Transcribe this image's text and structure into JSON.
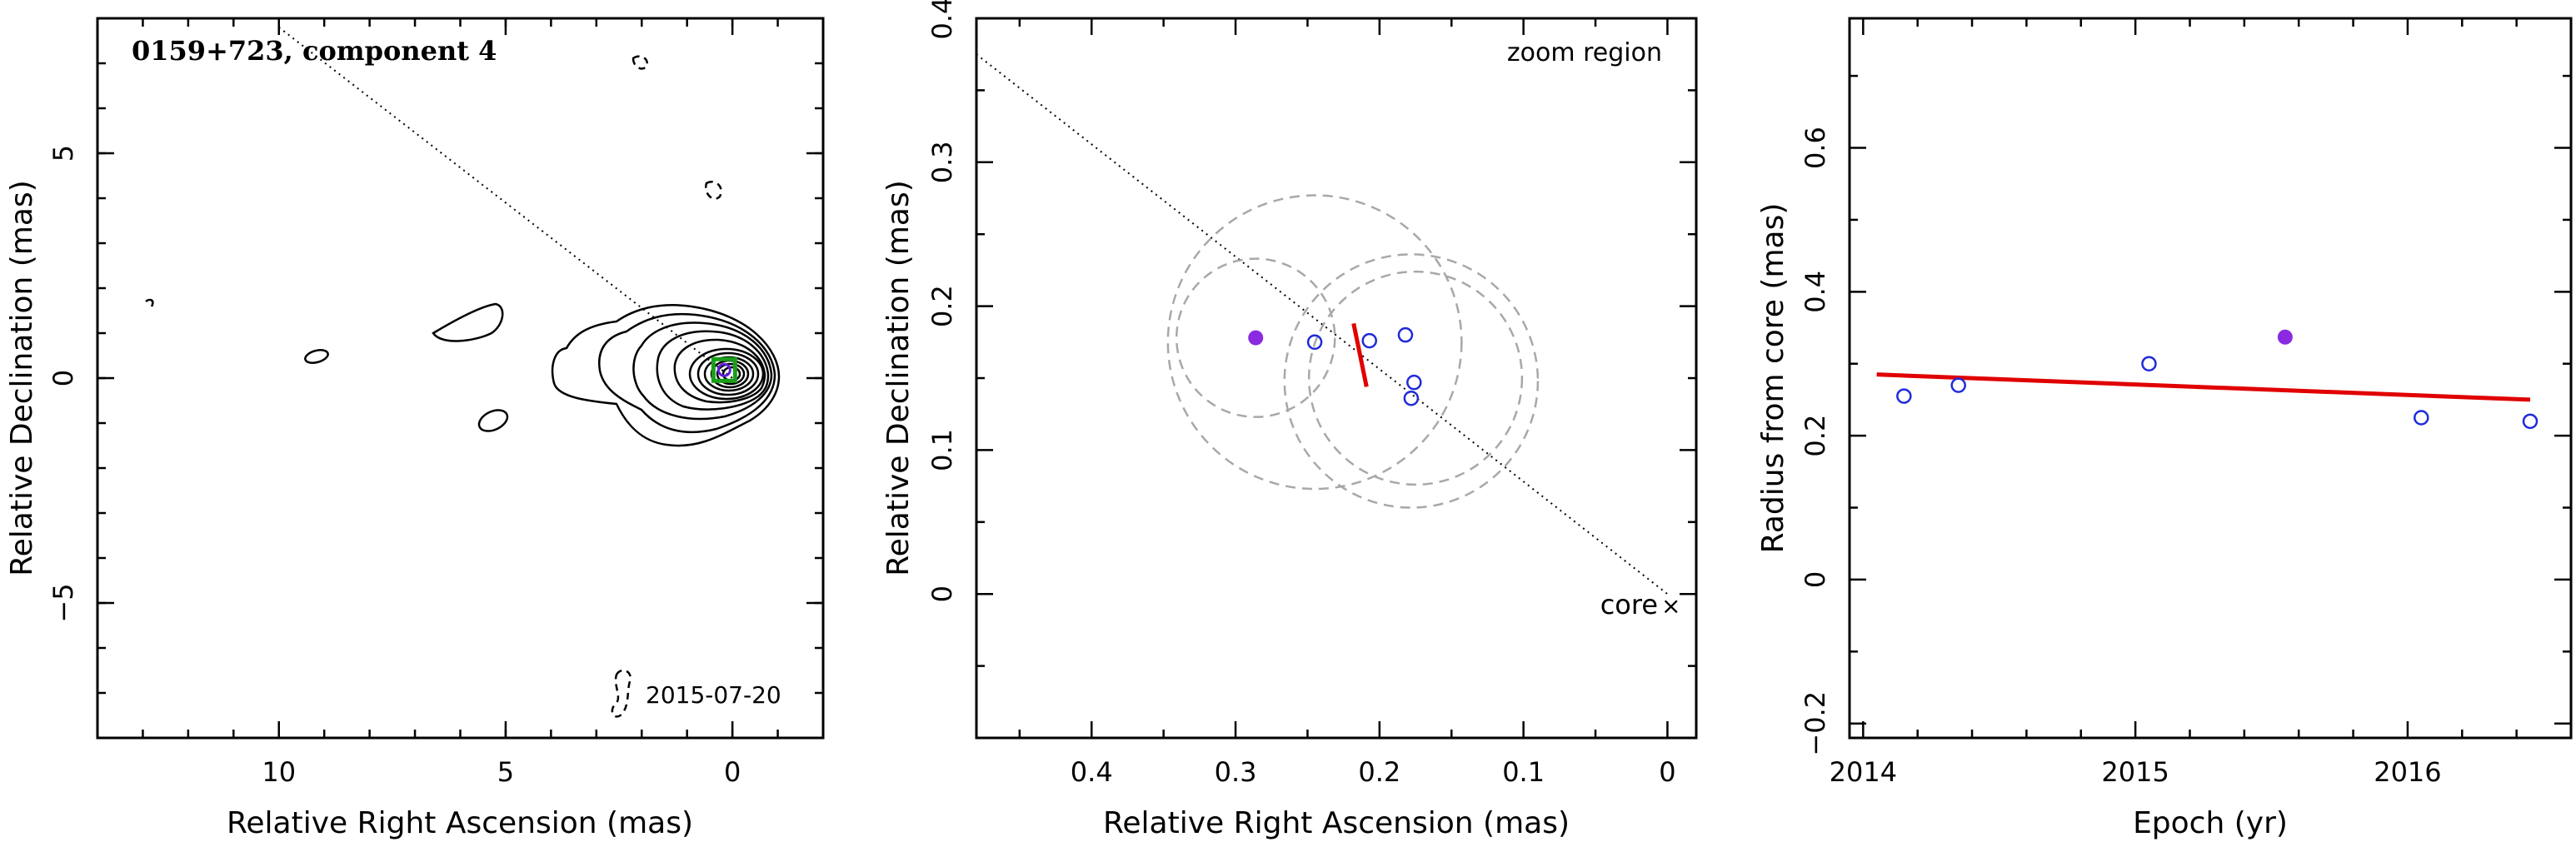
{
  "chart_data": [
    {
      "type": "contour-map",
      "title": "0159+723, component 4",
      "date_label": "2015-07-20",
      "xlabel": "Relative Right Ascension (mas)",
      "ylabel": "Relative Declination (mas)",
      "xlim": [
        14,
        -2
      ],
      "ylim": [
        -8,
        8
      ],
      "xticks": [
        10,
        5,
        0
      ],
      "yticks": [
        5,
        0,
        -5
      ],
      "direction_line": [
        [
          10,
          7.8
        ],
        [
          0.0,
          0.0
        ]
      ],
      "component_marker": {
        "x": 0.18,
        "y": 0.18,
        "color": "#1a9e1a",
        "fill": "#5b1fd8"
      },
      "contour_center": {
        "x": 0.1,
        "y": 0.15
      }
    },
    {
      "type": "scatter",
      "annotation_zoom": "zoom region",
      "annotation_core": "core",
      "xlabel": "Relative Right Ascension (mas)",
      "ylabel": "Relative Declination (mas)",
      "xlim": [
        0.48,
        -0.02
      ],
      "ylim": [
        -0.1,
        0.4
      ],
      "xticks": [
        0.4,
        0.3,
        0.2,
        0.1,
        0
      ],
      "yticks": [
        0,
        0.1,
        0.2,
        0.3,
        0.4
      ],
      "direction_line": [
        [
          0.48,
          0.375
        ],
        [
          0.0,
          0.0
        ]
      ],
      "open_points": [
        {
          "x": 0.245,
          "y": 0.175
        },
        {
          "x": 0.207,
          "y": 0.176
        },
        {
          "x": 0.182,
          "y": 0.18
        },
        {
          "x": 0.176,
          "y": 0.147
        },
        {
          "x": 0.178,
          "y": 0.136
        }
      ],
      "filled_point": {
        "x": 0.286,
        "y": 0.178,
        "color": "#8a2be2"
      },
      "uncertainty_circles": [
        {
          "cx": 0.286,
          "cy": 0.178,
          "r": 0.055
        },
        {
          "cx": 0.245,
          "cy": 0.175,
          "r": 0.102
        },
        {
          "cx": 0.178,
          "cy": 0.148,
          "r": 0.088
        },
        {
          "cx": 0.175,
          "cy": 0.15,
          "r": 0.074
        }
      ],
      "fit_segment": [
        [
          0.218,
          0.188
        ],
        [
          0.209,
          0.144
        ]
      ],
      "fit_color": "#e00000",
      "open_point_color": "#1f2bd8"
    },
    {
      "type": "scatter",
      "xlabel": "Epoch (yr)",
      "ylabel": "Radius from core (mas)",
      "xlim": [
        2013.95,
        2016.6
      ],
      "ylim": [
        -0.22,
        0.78
      ],
      "xticks": [
        2014,
        2015,
        2016
      ],
      "yticks": [
        -0.2,
        0,
        0.2,
        0.4,
        0.6
      ],
      "open_points": [
        {
          "x": 2014.15,
          "y": 0.255
        },
        {
          "x": 2014.35,
          "y": 0.27
        },
        {
          "x": 2015.05,
          "y": 0.3
        },
        {
          "x": 2016.05,
          "y": 0.225
        },
        {
          "x": 2016.45,
          "y": 0.22
        }
      ],
      "filled_point": {
        "x": 2015.55,
        "y": 0.337,
        "color": "#8a2be2"
      },
      "fit_line": [
        [
          2014.05,
          0.285
        ],
        [
          2016.45,
          0.25
        ]
      ],
      "fit_color": "#e00000",
      "open_point_color": "#1f2bd8"
    }
  ]
}
